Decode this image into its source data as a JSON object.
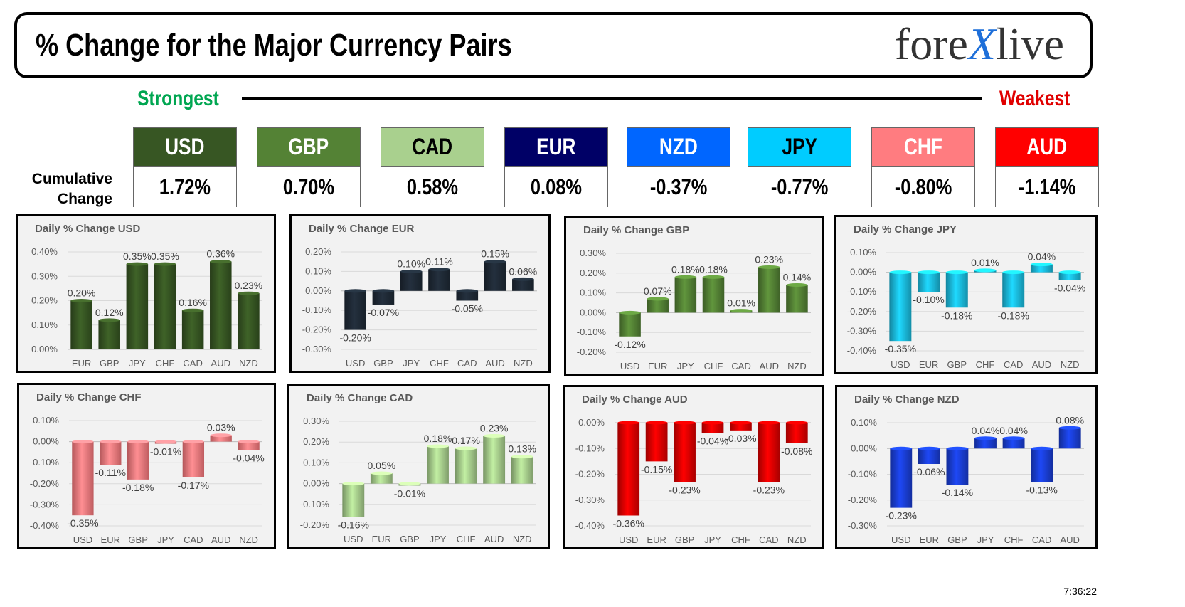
{
  "header": {
    "title": "% Change for the Major Currency Pairs",
    "logo_left": "fore",
    "logo_x": "X",
    "logo_right": "live"
  },
  "scale": {
    "strongest": "Strongest",
    "weakest": "Weakest"
  },
  "cumulative": {
    "label_line1": "Cumulative",
    "label_line2": "Change",
    "items": [
      {
        "code": "USD",
        "value": "1.72%",
        "bg": "#375623",
        "fg": "#ffffff"
      },
      {
        "code": "GBP",
        "value": "0.70%",
        "bg": "#548235",
        "fg": "#ffffff"
      },
      {
        "code": "CAD",
        "value": "0.58%",
        "bg": "#a9d08e",
        "fg": "#000000"
      },
      {
        "code": "EUR",
        "value": "0.08%",
        "bg": "#000066",
        "fg": "#ffffff"
      },
      {
        "code": "NZD",
        "value": "-0.37%",
        "bg": "#0066ff",
        "fg": "#ffffff"
      },
      {
        "code": "JPY",
        "value": "-0.77%",
        "bg": "#00ccff",
        "fg": "#000000"
      },
      {
        "code": "CHF",
        "value": "-0.80%",
        "bg": "#ff7c80",
        "fg": "#ffffff"
      },
      {
        "code": "AUD",
        "value": "-1.14%",
        "bg": "#ff0000",
        "fg": "#ffffff"
      }
    ]
  },
  "chart_data": [
    {
      "type": "bar",
      "title": "Daily % Change USD",
      "categories": [
        "EUR",
        "GBP",
        "JPY",
        "CHF",
        "CAD",
        "AUD",
        "NZD"
      ],
      "values": [
        0.2,
        0.12,
        0.35,
        0.35,
        0.16,
        0.36,
        0.23
      ],
      "labels": [
        "0.20%",
        "0.12%",
        "0.35%",
        "0.35%",
        "0.16%",
        "0.36%",
        "0.23%"
      ],
      "ylim": [
        0.0,
        0.4
      ],
      "yticks": [
        "0.00%",
        "0.10%",
        "0.20%",
        "0.30%",
        "0.40%"
      ],
      "color": "#375623",
      "grid": true
    },
    {
      "type": "bar",
      "title": "Daily % Change EUR",
      "categories": [
        "USD",
        "GBP",
        "JPY",
        "CHF",
        "CAD",
        "AUD",
        "NZD"
      ],
      "values": [
        -0.2,
        -0.07,
        0.1,
        0.11,
        -0.05,
        0.15,
        0.06
      ],
      "labels": [
        "-0.20%",
        "-0.07%",
        "0.10%",
        "0.11%",
        "-0.05%",
        "0.15%",
        "0.06%"
      ],
      "ylim": [
        -0.3,
        0.2
      ],
      "yticks": [
        "-0.30%",
        "-0.20%",
        "-0.10%",
        "0.00%",
        "0.10%",
        "0.20%"
      ],
      "color": "#1f2a36",
      "grid": true
    },
    {
      "type": "bar",
      "title": "Daily % Change GBP",
      "categories": [
        "USD",
        "EUR",
        "JPY",
        "CHF",
        "CAD",
        "AUD",
        "NZD"
      ],
      "values": [
        -0.12,
        0.07,
        0.18,
        0.18,
        0.01,
        0.23,
        0.14
      ],
      "labels": [
        "-0.12%",
        "0.07%",
        "0.18%",
        "0.18%",
        "0.01%",
        "0.23%",
        "0.14%"
      ],
      "ylim": [
        -0.2,
        0.3
      ],
      "yticks": [
        "-0.20%",
        "-0.10%",
        "0.00%",
        "0.10%",
        "0.20%",
        "0.30%"
      ],
      "color": "#548235",
      "grid": true
    },
    {
      "type": "bar",
      "title": "Daily % Change JPY",
      "categories": [
        "USD",
        "EUR",
        "GBP",
        "CHF",
        "CAD",
        "AUD",
        "NZD"
      ],
      "values": [
        -0.35,
        -0.1,
        -0.18,
        0.01,
        -0.18,
        0.04,
        -0.04
      ],
      "labels": [
        "-0.35%",
        "-0.10%",
        "-0.18%",
        "0.01%",
        "-0.18%",
        "0.04%",
        "-0.04%"
      ],
      "ylim": [
        -0.4,
        0.1
      ],
      "yticks": [
        "-0.40%",
        "-0.30%",
        "-0.20%",
        "-0.10%",
        "0.00%",
        "0.10%"
      ],
      "color": "#1bbde0",
      "grid": true
    },
    {
      "type": "bar",
      "title": "Daily % Change CHF",
      "categories": [
        "USD",
        "EUR",
        "GBP",
        "JPY",
        "CAD",
        "AUD",
        "NZD"
      ],
      "values": [
        -0.35,
        -0.11,
        -0.18,
        -0.01,
        -0.17,
        0.03,
        -0.04
      ],
      "labels": [
        "-0.35%",
        "-0.11%",
        "-0.18%",
        "-0.01%",
        "-0.17%",
        "0.03%",
        "-0.04%"
      ],
      "ylim": [
        -0.4,
        0.1
      ],
      "yticks": [
        "-0.40%",
        "-0.30%",
        "-0.20%",
        "-0.10%",
        "0.00%",
        "0.10%"
      ],
      "color": "#ff7c80",
      "grid": true
    },
    {
      "type": "bar",
      "title": "Daily % Change CAD",
      "categories": [
        "USD",
        "EUR",
        "GBP",
        "JPY",
        "CHF",
        "AUD",
        "NZD"
      ],
      "values": [
        -0.16,
        0.05,
        -0.01,
        0.18,
        0.17,
        0.23,
        0.13
      ],
      "labels": [
        "-0.16%",
        "0.05%",
        "-0.01%",
        "0.18%",
        "0.17%",
        "0.23%",
        "0.13%"
      ],
      "ylim": [
        -0.2,
        0.3
      ],
      "yticks": [
        "-0.20%",
        "-0.10%",
        "0.00%",
        "0.10%",
        "0.20%",
        "0.30%"
      ],
      "color": "#a9d08e",
      "grid": true
    },
    {
      "type": "bar",
      "title": "Daily % Change AUD",
      "categories": [
        "USD",
        "EUR",
        "GBP",
        "JPY",
        "CHF",
        "CAD",
        "NZD"
      ],
      "values": [
        -0.36,
        -0.15,
        -0.23,
        -0.04,
        -0.03,
        -0.23,
        -0.08
      ],
      "labels": [
        "-0.36%",
        "-0.15%",
        "-0.23%",
        "-0.04%",
        "-0.03%",
        "-0.23%",
        "-0.08%"
      ],
      "ylim": [
        -0.4,
        0.0
      ],
      "yticks": [
        "-0.40%",
        "-0.30%",
        "-0.20%",
        "-0.10%",
        "0.00%"
      ],
      "color": "#e00000",
      "grid": true
    },
    {
      "type": "bar",
      "title": "Daily % Change NZD",
      "categories": [
        "USD",
        "EUR",
        "GBP",
        "JPY",
        "CHF",
        "CAD",
        "AUD"
      ],
      "values": [
        -0.23,
        -0.06,
        -0.14,
        0.04,
        0.04,
        -0.13,
        0.08
      ],
      "labels": [
        "-0.23%",
        "-0.06%",
        "-0.14%",
        "0.04%",
        "0.04%",
        "-0.13%",
        "0.08%"
      ],
      "ylim": [
        -0.3,
        0.1
      ],
      "yticks": [
        "-0.30%",
        "-0.20%",
        "-0.10%",
        "0.00%",
        "0.10%"
      ],
      "color": "#1a3fd6",
      "grid": true
    }
  ],
  "timestamp": "7:36:22"
}
